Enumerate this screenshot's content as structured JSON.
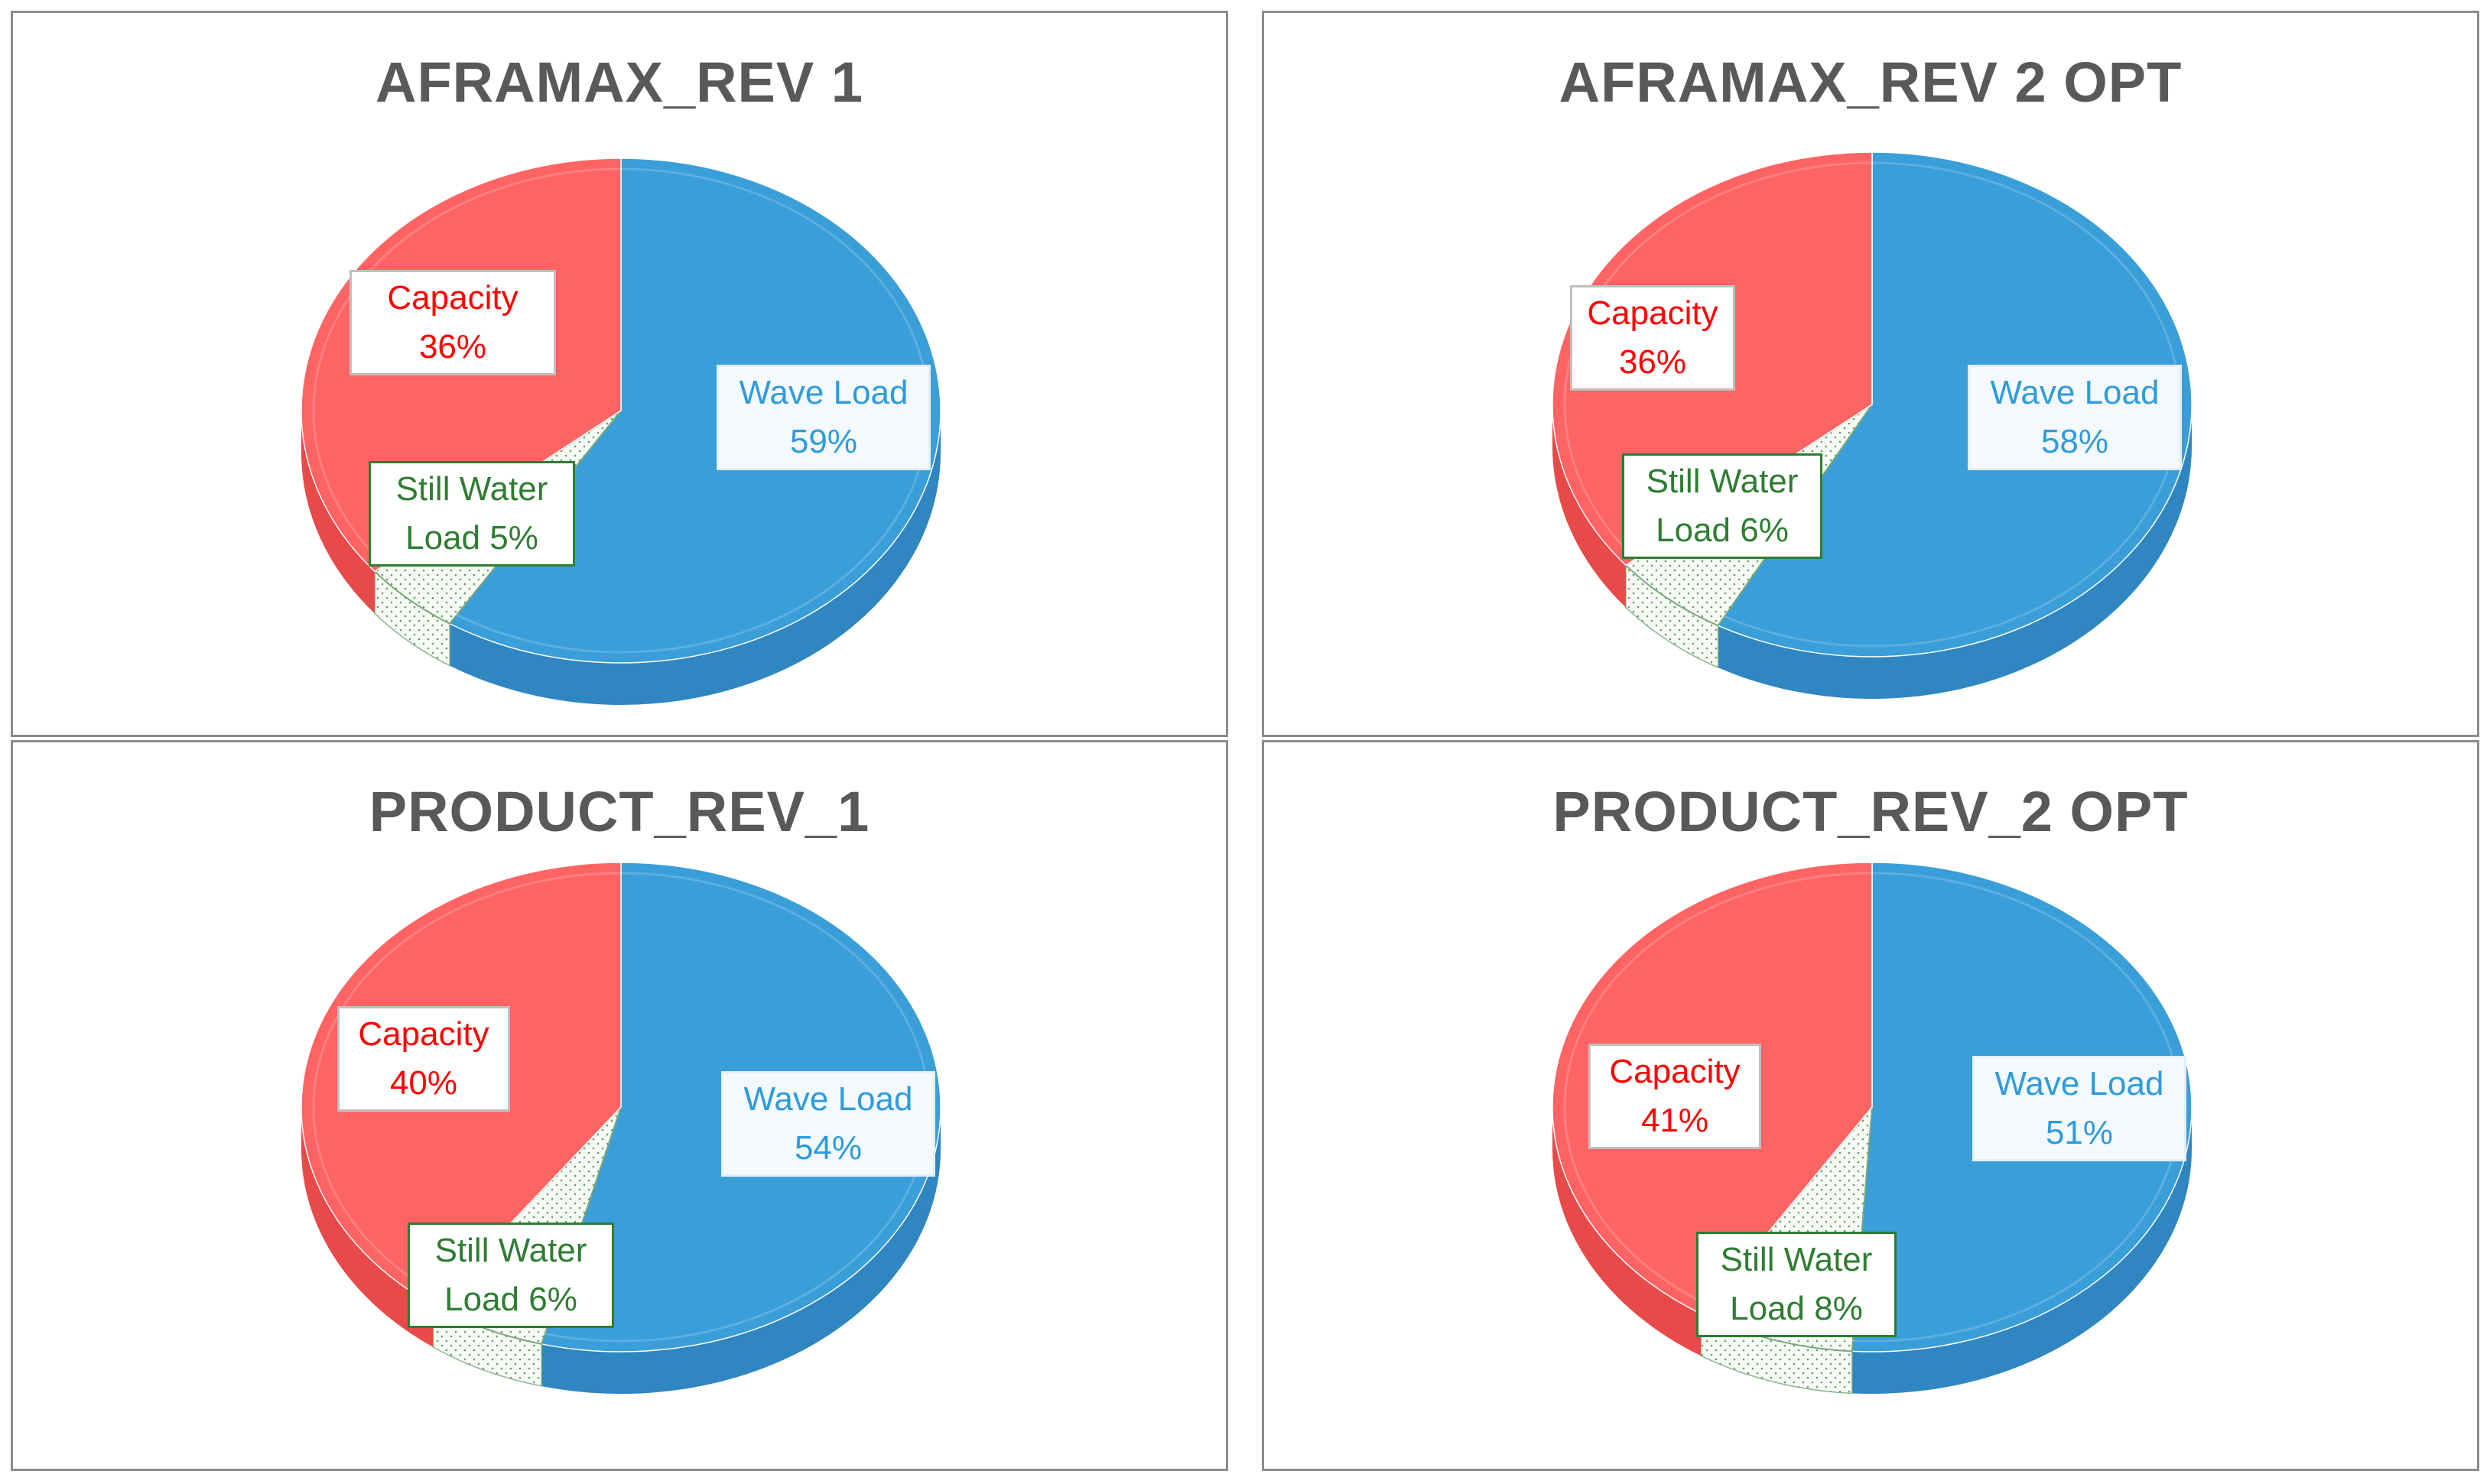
{
  "colors": {
    "capacity": "#ff6464",
    "capacity_dark": "#e84a4a",
    "wave": "#3a9ed8",
    "wave_dark": "#2f86c0",
    "still": "#f7fbf5",
    "still_dark": "#e9f1e5"
  },
  "chart_data": [
    {
      "type": "pie",
      "title": "AFRAMAX_REV 1",
      "slices": [
        {
          "key": "wave",
          "label": "Wave Load",
          "value": 59,
          "text": "59%"
        },
        {
          "key": "still",
          "label": "Still Water Load",
          "line1": "Still Water",
          "line2": "Load 5%",
          "value": 5
        },
        {
          "key": "capacity",
          "label": "Capacity",
          "value": 36,
          "text": "36%"
        }
      ]
    },
    {
      "type": "pie",
      "title": "AFRAMAX_REV 2 OPT",
      "slices": [
        {
          "key": "wave",
          "label": "Wave Load",
          "value": 58,
          "text": "58%"
        },
        {
          "key": "still",
          "label": "Still Water Load",
          "line1": "Still Water",
          "line2": "Load 6%",
          "value": 6
        },
        {
          "key": "capacity",
          "label": "Capacity",
          "value": 36,
          "text": "36%"
        }
      ]
    },
    {
      "type": "pie",
      "title": "PRODUCT_REV_1",
      "slices": [
        {
          "key": "wave",
          "label": "Wave Load",
          "value": 54,
          "text": "54%"
        },
        {
          "key": "still",
          "label": "Still Water Load",
          "line1": "Still Water",
          "line2": "Load 6%",
          "value": 6
        },
        {
          "key": "capacity",
          "label": "Capacity",
          "value": 40,
          "text": "40%"
        }
      ]
    },
    {
      "type": "pie",
      "title": "PRODUCT_REV_2 OPT",
      "slices": [
        {
          "key": "wave",
          "label": "Wave Load",
          "value": 51,
          "text": "51%"
        },
        {
          "key": "still",
          "label": "Still Water Load",
          "line1": "Still Water",
          "line2": "Load 8%",
          "value": 8
        },
        {
          "key": "capacity",
          "label": "Capacity",
          "value": 41,
          "text": "41%"
        }
      ]
    }
  ]
}
